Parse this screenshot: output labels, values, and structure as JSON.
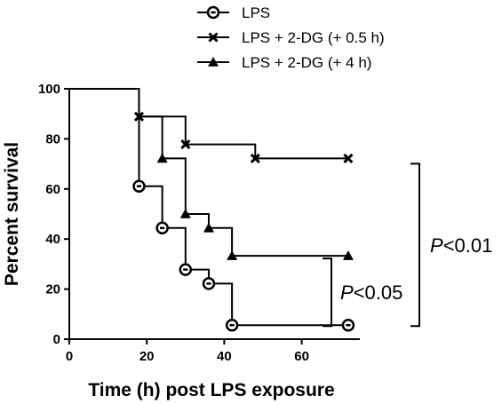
{
  "chart_data": {
    "type": "line",
    "step": true,
    "xlabel": "Time (h) post LPS exposure",
    "ylabel": "Percent survival",
    "xlim": [
      0,
      75
    ],
    "ylim": [
      0,
      100
    ],
    "x_ticks": [
      0,
      20,
      40,
      60
    ],
    "y_ticks": [
      0,
      20,
      40,
      60,
      80,
      100
    ],
    "grid": false,
    "legend_position": "top",
    "series": [
      {
        "name": "LPS",
        "marker": "circle",
        "x": [
          0,
          18,
          24,
          30,
          36,
          42,
          72
        ],
        "y": [
          100,
          61.1,
          44.4,
          27.8,
          22.2,
          5.6,
          5.6
        ],
        "marked_points": [
          18,
          24,
          30,
          36,
          42,
          72
        ]
      },
      {
        "name": "LPS + 2-DG (+ 0.5 h)",
        "marker": "x",
        "x": [
          0,
          18,
          30,
          48,
          72
        ],
        "y": [
          100,
          88.9,
          77.8,
          72.2,
          72.2
        ],
        "marked_points": [
          18,
          30,
          48,
          72
        ]
      },
      {
        "name": "LPS + 2-DG (+ 4 h)",
        "marker": "triangle",
        "x": [
          0,
          18,
          24,
          30,
          36,
          42,
          72
        ],
        "y": [
          100,
          88.9,
          72.2,
          50,
          44.4,
          33.3,
          33.3
        ],
        "marked_points": [
          24,
          30,
          36,
          42,
          72
        ]
      }
    ],
    "annotations": [
      {
        "id": "p001",
        "prefix": "P",
        "text": "<0.01",
        "spans": [
          "LPS + 2-DG (+ 0.5 h)",
          "LPS"
        ]
      },
      {
        "id": "p005",
        "prefix": "P",
        "text": "<0.05",
        "spans": [
          "LPS + 2-DG (+ 4 h)",
          "LPS"
        ]
      }
    ]
  }
}
